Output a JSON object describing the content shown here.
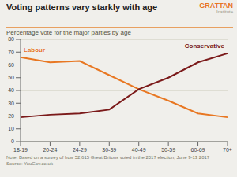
{
  "chart_data": {
    "type": "line",
    "title": "Voting patterns vary starkly with age",
    "subtitle": "Percentage vote for the major parties by age",
    "note": "Note: Based on a survey of how 52,615 Great Britons voted in the 2017 election, June 9-13 2017",
    "source": "Source: YouGov.co.uk",
    "annotations": [
      {
        "text": "GRATTAN",
        "color": "#E87722"
      },
      {
        "text": "Institute"
      }
    ],
    "categories": [
      "18-19",
      "20-24",
      "24-29",
      "30-39",
      "40-49",
      "50-59",
      "60-69",
      "70+"
    ],
    "series": [
      {
        "name": "Labour",
        "color": "#E87722",
        "values": [
          66,
          62,
          63,
          52,
          41,
          32,
          22,
          19
        ]
      },
      {
        "name": "Conservative",
        "color": "#7B1A1A",
        "values": [
          19,
          21,
          22,
          25,
          41,
          50,
          62,
          69
        ]
      }
    ],
    "ylim": [
      0,
      80
    ],
    "yticks": [
      0,
      10,
      20,
      30,
      40,
      50,
      60,
      70,
      80
    ],
    "grid": true
  }
}
